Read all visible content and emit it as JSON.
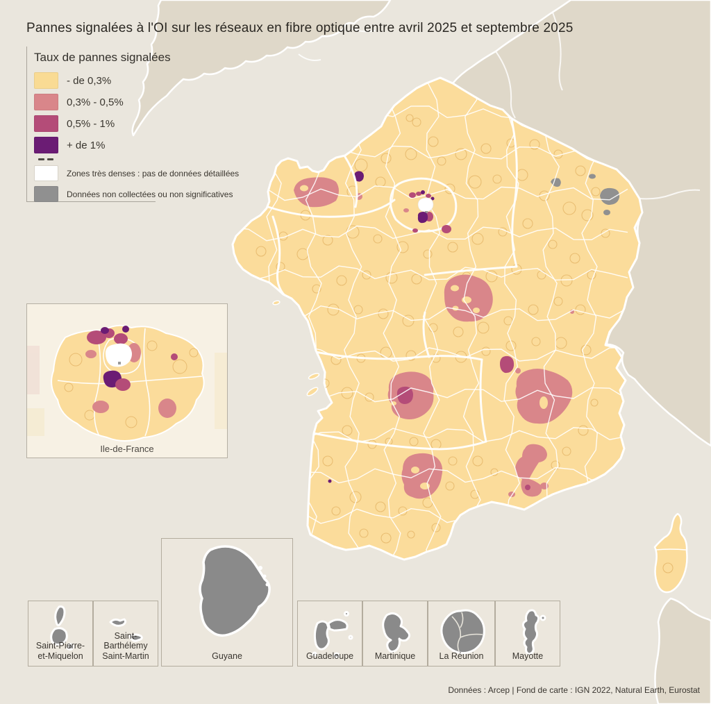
{
  "title": "Pannes signalées à l'OI sur les réseaux en fibre optique entre avril 2025 et septembre 2025",
  "legend": {
    "title": "Taux de pannes signalées",
    "items": [
      {
        "label": "- de 0,3%",
        "color": "#F9DB94"
      },
      {
        "label": "0,3% - 0,5%",
        "color": "#D9868A"
      },
      {
        "label": "0,5% - 1%",
        "color": "#B44C78"
      },
      {
        "label": "+ de 1%",
        "color": "#6B1C74"
      }
    ],
    "special_items": [
      {
        "label": "Zones très denses : pas de données détaillées",
        "color": "#FFFFFF"
      },
      {
        "label": "Données non collectées ou non significatives",
        "color": "#909090"
      }
    ]
  },
  "inset": {
    "label": "Ile-de-France"
  },
  "territories": [
    {
      "name": "Saint-Pierre-et-Miquelon",
      "lines": [
        "Saint-Pierre-",
        "et-Miquelon"
      ]
    },
    {
      "name": "Saint-Barthélemy Saint-Martin",
      "lines": [
        "Saint-Barthélemy",
        "Saint-Martin"
      ]
    },
    {
      "name": "Guyane",
      "lines": [
        "Guyane"
      ]
    },
    {
      "name": "Guadeloupe",
      "lines": [
        "Guadeloupe"
      ]
    },
    {
      "name": "Martinique",
      "lines": [
        "Martinique"
      ]
    },
    {
      "name": "La Réunion",
      "lines": [
        "La Réunion"
      ]
    },
    {
      "name": "Mayotte",
      "lines": [
        "Mayotte"
      ]
    }
  ],
  "attribution": "Données : Arcep | Fond de carte : IGN 2022, Natural Earth, Eurostat",
  "base_colors": {
    "france": "#FBDC9B",
    "sea": "#EAE6DD",
    "foreign_land": "#DFD8C9",
    "territory_shape": "#8A8A8A"
  }
}
